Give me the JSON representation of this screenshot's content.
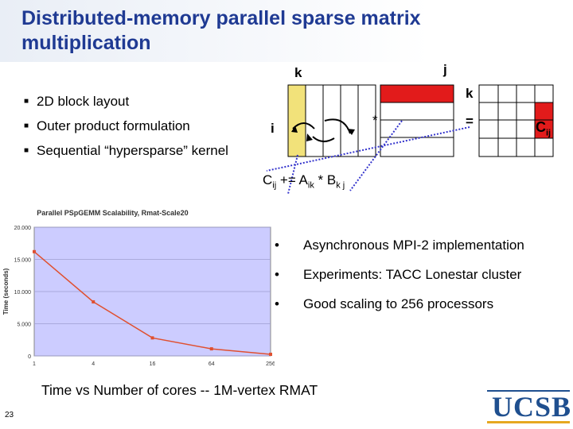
{
  "slide": {
    "title": "Distributed-memory parallel sparse matrix multiplication",
    "page_number": "23",
    "bullets": [
      "2D block layout",
      "Outer product formulation",
      "Sequential “hypersparse” kernel"
    ],
    "right_bullets": [
      "Asynchronous MPI-2 implementation",
      "Experiments: TACC Lonestar cluster",
      "Good scaling to 256 processors"
    ],
    "caption": "Time vs Number of cores -- 1M-vertex RMAT",
    "logo_text": "UCSB"
  },
  "diagram": {
    "label_k_top": "k",
    "label_j": "j",
    "label_k_right": "k",
    "label_i": "i",
    "op_mult": "*",
    "op_eq": "=",
    "label_c": "C",
    "label_c_sub": "ij",
    "formula": {
      "c": "C",
      "c_sub": "ij",
      "op": " += A",
      "a_sub": "ik",
      "star": " * B",
      "b_sub": "k j"
    },
    "colors": {
      "strip": "#f2e27a",
      "block": "#e21b1b",
      "arrow": "#3333cc"
    }
  },
  "chart_data": {
    "type": "line",
    "title": "Parallel PSpGEMM Scalability, Rmat-Scale20",
    "ylabel": "Time (seconds)",
    "xlabel": "",
    "x_ticks": [
      "1",
      "4",
      "16",
      "64",
      "256"
    ],
    "x_scale": "log",
    "y_ticks": [
      "0",
      "5.000",
      "10.000",
      "15.000",
      "20.000"
    ],
    "ylim": [
      0,
      20000
    ],
    "series": [
      {
        "x": [
          1,
          4,
          16,
          64,
          256
        ],
        "values": [
          16200,
          8400,
          2800,
          1100,
          250
        ]
      }
    ],
    "grid": true,
    "colors": {
      "line": "#e05030",
      "plot_bg": "#ccccff"
    }
  }
}
